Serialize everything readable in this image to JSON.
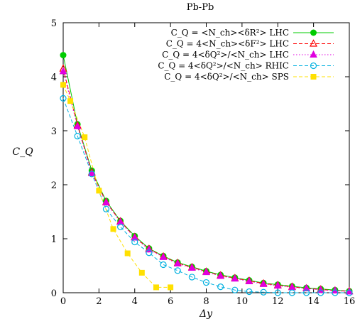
{
  "chart_data": {
    "type": "line",
    "title": "Pb-Pb",
    "xlabel": "Δy",
    "ylabel": "C_Q",
    "xlim": [
      0,
      16
    ],
    "ylim": [
      0,
      5
    ],
    "xticks": [
      0,
      2,
      4,
      6,
      8,
      10,
      12,
      14,
      16
    ],
    "yticks": [
      0,
      1,
      2,
      3,
      4,
      5
    ],
    "grid": false,
    "legend_position": "top-right",
    "series": [
      {
        "name": "C_Q = <N_ch><δR²> LHC",
        "color": "#00cc00",
        "marker": "filled-circle",
        "line": "solid",
        "x": [
          0,
          0.8,
          1.6,
          2.4,
          3.2,
          4.0,
          4.8,
          5.6,
          6.4,
          7.2,
          8.0,
          8.8,
          9.6,
          10.4,
          11.2,
          12.0,
          12.8,
          13.6,
          14.4,
          15.2,
          16.0
        ],
        "y": [
          4.4,
          3.12,
          2.26,
          1.7,
          1.33,
          1.05,
          0.82,
          0.68,
          0.56,
          0.48,
          0.4,
          0.33,
          0.28,
          0.23,
          0.18,
          0.15,
          0.12,
          0.09,
          0.07,
          0.05,
          0.03
        ]
      },
      {
        "name": "C_Q = 4<N_ch><δF²> LHC",
        "color": "#ff0000",
        "marker": "open-triangle",
        "line": "dashed",
        "x": [
          0,
          0.8,
          1.6,
          2.4,
          3.2,
          4.0,
          4.8,
          5.6,
          6.4,
          7.2,
          8.0,
          8.8,
          9.6,
          10.4,
          11.2,
          12.0,
          12.8,
          13.6,
          14.4,
          15.2,
          16.0
        ],
        "y": [
          4.15,
          3.1,
          2.23,
          1.68,
          1.32,
          1.03,
          0.81,
          0.67,
          0.55,
          0.47,
          0.39,
          0.32,
          0.27,
          0.22,
          0.17,
          0.14,
          0.11,
          0.08,
          0.06,
          0.04,
          0.03
        ]
      },
      {
        "name": "C_Q = 4<δQ²>/<N_ch> LHC",
        "color": "#e000e0",
        "marker": "filled-triangle",
        "line": "dotted",
        "x": [
          0,
          0.8,
          1.6,
          2.4,
          3.2,
          4.0,
          4.8,
          5.6,
          6.4,
          7.2,
          8.0,
          8.8,
          9.6,
          10.4,
          11.2,
          12.0,
          12.8,
          13.6,
          14.4,
          15.2,
          16.0
        ],
        "y": [
          4.1,
          3.08,
          2.21,
          1.67,
          1.31,
          1.02,
          0.8,
          0.66,
          0.54,
          0.46,
          0.38,
          0.31,
          0.26,
          0.21,
          0.16,
          0.13,
          0.1,
          0.08,
          0.05,
          0.04,
          0.02
        ]
      },
      {
        "name": "C_Q = 4<δQ²>/<N_ch> RHIC",
        "color": "#00b0e0",
        "marker": "open-circle",
        "line": "dashed",
        "x": [
          0,
          0.8,
          1.6,
          2.4,
          3.2,
          4.0,
          4.8,
          5.6,
          6.4,
          7.2,
          8.0,
          8.8,
          9.6,
          10.4,
          11.2,
          12.0,
          12.8,
          13.6,
          14.4,
          15.2,
          16.0
        ],
        "y": [
          3.6,
          2.9,
          2.2,
          1.55,
          1.22,
          0.94,
          0.74,
          0.52,
          0.41,
          0.29,
          0.19,
          0.11,
          0.05,
          0.02,
          0.01,
          0.0,
          0.0,
          0.0,
          0.0,
          0.0,
          0.0
        ]
      },
      {
        "name": "C_Q = 4<δQ²>/<N_ch> SPS",
        "color": "#ffe000",
        "marker": "filled-square",
        "line": "dashed",
        "x": [
          0,
          0.4,
          1.2,
          2.0,
          2.8,
          3.6,
          4.4,
          5.2,
          6.0
        ],
        "y": [
          3.85,
          3.55,
          2.88,
          1.89,
          1.18,
          0.73,
          0.37,
          0.1,
          0.1
        ]
      }
    ]
  }
}
